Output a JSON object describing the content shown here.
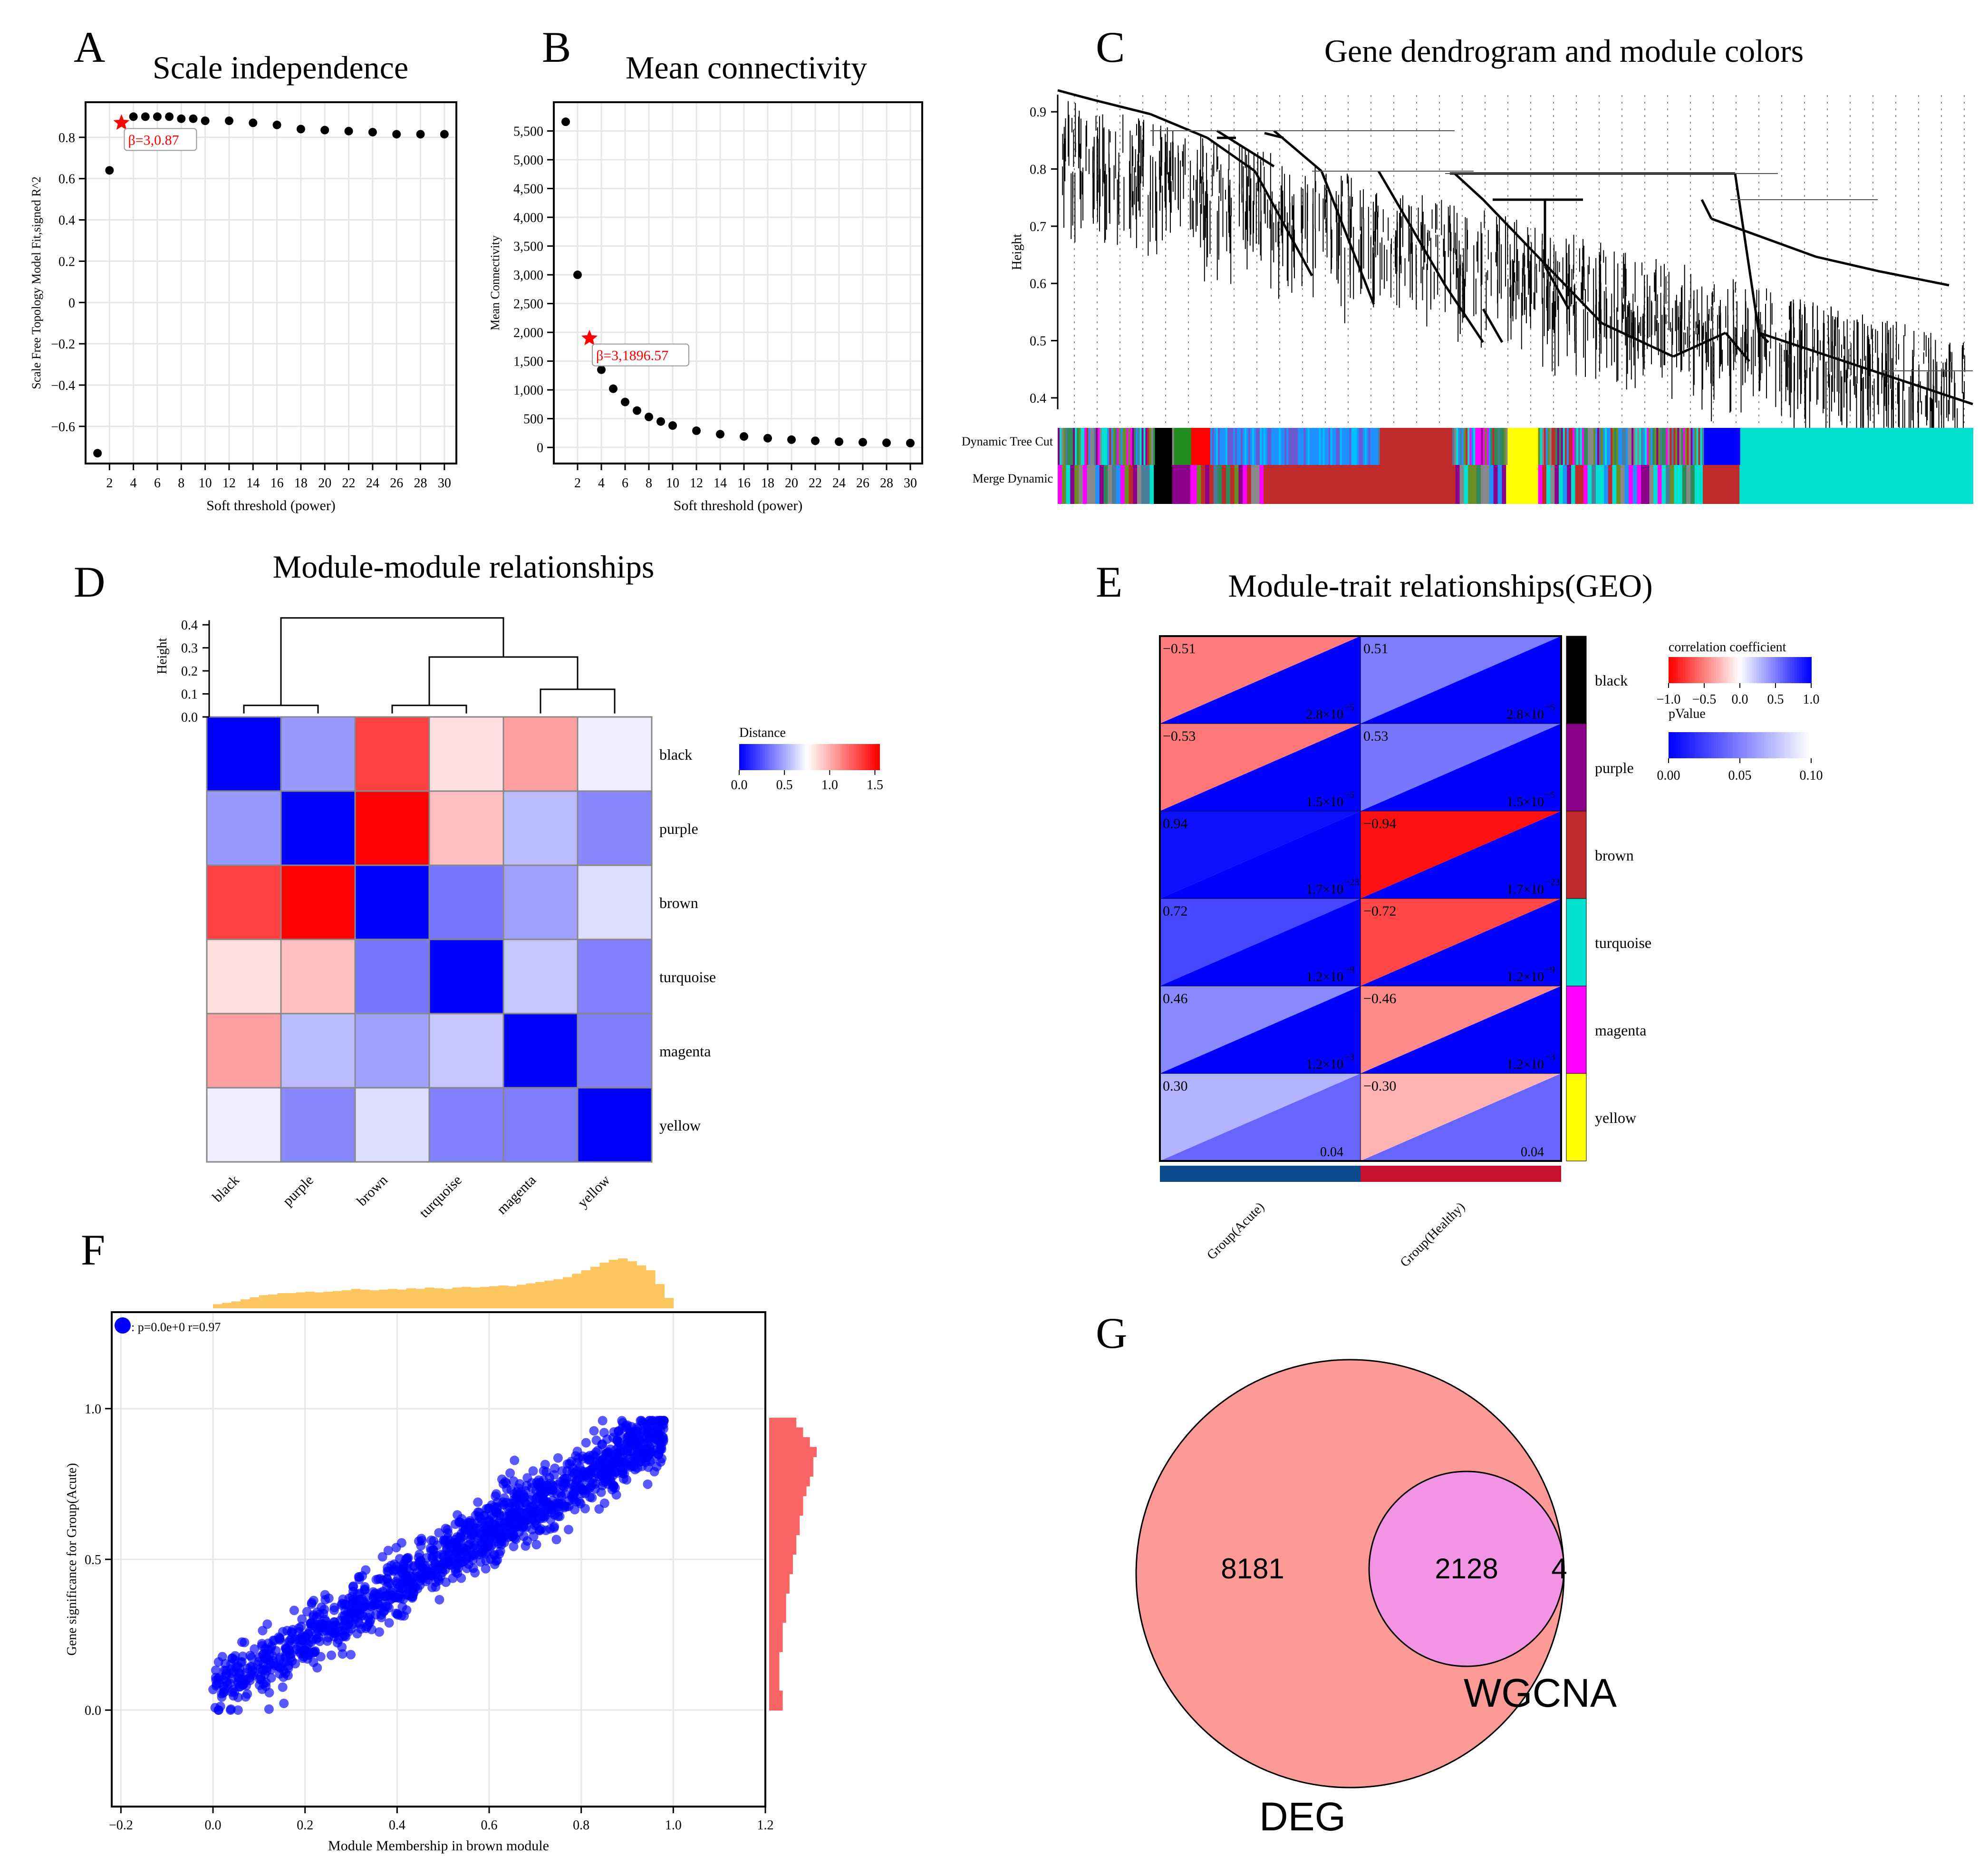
{
  "panel_letters": [
    "A",
    "B",
    "C",
    "D",
    "E",
    "F",
    "G"
  ],
  "colors": {
    "black": "#000000",
    "purple": "#8b008b",
    "brown": "#c12a2a",
    "turquoise": "#00e0d0",
    "magenta": "#ff00ff",
    "yellow": "#ffff00",
    "neg": "#ff0000",
    "pos": "#0000ff",
    "acute_bar": "#0b4a8c",
    "healthy_bar": "#c8102e",
    "hist_top": "#fcc760",
    "hist_right": "#fa6464",
    "deg": "#fc9a98",
    "wgcna": "#f294e4",
    "scatter": "#0000ff"
  },
  "chart_data": [
    {
      "id": "A",
      "type": "scatter",
      "title": "Scale independence",
      "xlabel": "Soft threshold (power)",
      "ylabel": "Scale Free Topology Model Fit,signed R^2",
      "xlim": [
        0,
        31
      ],
      "ylim": [
        -0.78,
        0.97
      ],
      "xticks": [
        2,
        4,
        6,
        8,
        10,
        12,
        14,
        16,
        18,
        20,
        22,
        24,
        26,
        28,
        30
      ],
      "yticks": [
        -0.6,
        -0.4,
        -0.2,
        0,
        0.2,
        0.4,
        0.6,
        0.8
      ],
      "ytick_labels": [
        "−0.6",
        "−0.4",
        "−0.2",
        "0",
        "0.2",
        "0.4",
        "0.6",
        "0.8"
      ],
      "x": [
        1,
        2,
        4,
        5,
        6,
        7,
        8,
        9,
        10,
        12,
        14,
        16,
        18,
        20,
        22,
        24,
        26,
        28,
        30
      ],
      "y": [
        -0.73,
        0.64,
        0.9,
        0.9,
        0.9,
        0.9,
        0.89,
        0.89,
        0.88,
        0.88,
        0.87,
        0.86,
        0.84,
        0.835,
        0.83,
        0.825,
        0.815,
        0.815,
        0.815
      ],
      "highlight": {
        "x": 3,
        "y": 0.87,
        "label": "β=3,0.87"
      }
    },
    {
      "id": "B",
      "type": "scatter",
      "title": "Mean connectivity",
      "xlabel": "Soft threshold (power)",
      "ylabel": "Mean Connectivity",
      "xlim": [
        0,
        31
      ],
      "ylim": [
        -280,
        6000
      ],
      "xticks": [
        2,
        4,
        6,
        8,
        10,
        12,
        14,
        16,
        18,
        20,
        22,
        24,
        26,
        28,
        30
      ],
      "yticks": [
        0,
        500,
        1000,
        1500,
        2000,
        2500,
        3000,
        3500,
        4000,
        4500,
        5000,
        5500
      ],
      "ytick_labels": [
        "0",
        "500",
        "1,000",
        "1,500",
        "2,000",
        "2,500",
        "3,000",
        "3,500",
        "4,000",
        "4,500",
        "5,000",
        "5,500"
      ],
      "x": [
        1,
        2,
        4,
        5,
        6,
        7,
        8,
        9,
        10,
        12,
        14,
        16,
        18,
        20,
        22,
        24,
        26,
        28,
        30
      ],
      "y": [
        5660,
        3000,
        1350,
        1020,
        790,
        640,
        530,
        450,
        380,
        290,
        230,
        190,
        160,
        135,
        115,
        100,
        90,
        80,
        75
      ],
      "highlight": {
        "x": 3,
        "y": 1896.57,
        "label": "β=3,1896.57"
      }
    },
    {
      "id": "C",
      "type": "dendrogram",
      "title": "Gene dendrogram and module colors",
      "ylabel": "Height",
      "ylim": [
        0.36,
        0.95
      ],
      "yticks": [
        0.4,
        0.5,
        0.6,
        0.7,
        0.8,
        0.9
      ],
      "row_labels": [
        "Dynamic Tree Cut",
        "Merge Dynamic"
      ],
      "merge_blocks": [
        {
          "module": "mixed",
          "from": 0,
          "to": 0.105
        },
        {
          "module": "black",
          "from": 0.105,
          "to": 0.125
        },
        {
          "module": "purple",
          "from": 0.125,
          "to": 0.145
        },
        {
          "module": "magenta",
          "from": 0.145,
          "to": 0.152
        },
        {
          "module": "mixed",
          "from": 0.152,
          "to": 0.225
        },
        {
          "module": "brown",
          "from": 0.225,
          "to": 0.43
        },
        {
          "module": "mixed",
          "from": 0.43,
          "to": 0.49
        },
        {
          "module": "yellow",
          "from": 0.49,
          "to": 0.525
        },
        {
          "module": "mixed",
          "from": 0.525,
          "to": 0.705
        },
        {
          "module": "brown",
          "from": 0.705,
          "to": 0.745
        },
        {
          "module": "turquoise",
          "from": 0.745,
          "to": 1.0
        }
      ]
    },
    {
      "id": "D",
      "type": "heatmap",
      "title": "Module-module relationships",
      "ylabel": "Height",
      "legend_title": "Distance",
      "dendro_ticks": [
        0.0,
        0.1,
        0.2,
        0.3,
        0.4
      ],
      "dendro_tick_labels": [
        "0.0",
        "0.1",
        "0.2",
        "0.3",
        "0.4"
      ],
      "legend_ticks": [
        "0.0",
        "0.5",
        "1.0",
        "1.5"
      ],
      "modules": [
        "black",
        "purple",
        "brown",
        "turquoise",
        "magenta",
        "yellow"
      ],
      "matrix": [
        [
          0.0,
          0.45,
          1.35,
          0.85,
          1.05,
          0.7
        ],
        [
          0.45,
          0.0,
          1.55,
          0.95,
          0.55,
          0.4
        ],
        [
          1.35,
          1.55,
          0.0,
          0.35,
          0.47,
          0.65
        ],
        [
          0.85,
          0.95,
          0.35,
          0.0,
          0.58,
          0.38
        ],
        [
          1.05,
          0.55,
          0.47,
          0.58,
          0.0,
          0.37
        ],
        [
          0.7,
          0.4,
          0.65,
          0.38,
          0.37,
          0.0
        ]
      ]
    },
    {
      "id": "E",
      "type": "heatmap",
      "title": "Module-trait relationships(GEO)",
      "traits": [
        "Group(Acute)",
        "Group(Healthy)"
      ],
      "modules": [
        "black",
        "purple",
        "brown",
        "turquoise",
        "magenta",
        "yellow"
      ],
      "cor": [
        [
          -0.51,
          0.51
        ],
        [
          -0.53,
          0.53
        ],
        [
          0.94,
          -0.94
        ],
        [
          0.72,
          -0.72
        ],
        [
          0.46,
          -0.46
        ],
        [
          0.3,
          -0.3
        ]
      ],
      "cor_labels": [
        [
          "−0.51",
          "0.51"
        ],
        [
          "−0.53",
          "0.53"
        ],
        [
          "0.94",
          "−0.94"
        ],
        [
          "0.72",
          "−0.72"
        ],
        [
          "0.46",
          "−0.46"
        ],
        [
          "0.30",
          "−0.30"
        ]
      ],
      "pval": [
        0.0,
        0.0,
        0.0,
        0.0,
        0.0,
        0.04
      ],
      "p_mant": [
        "2.8×10",
        "1.5×10",
        "1.7×10",
        "1.2×10",
        "1.2×10",
        "0.04"
      ],
      "p_exp": [
        "−5",
        "−5",
        "−23",
        "−9",
        "−3",
        ""
      ],
      "legend_cor_title": "correlation coefficient",
      "legend_cor_ticks": [
        "−1.0",
        "−0.5",
        "0.0",
        "0.5",
        "1.0"
      ],
      "legend_p_title": "pValue",
      "legend_p_ticks": [
        "0.00",
        "0.05",
        "0.10"
      ]
    },
    {
      "id": "F",
      "type": "scatter",
      "xlabel": "Module Membership in brown module",
      "ylabel": "Gene significance for Group(Acute)",
      "xlim": [
        -0.22,
        1.2
      ],
      "ylim": [
        -0.32,
        1.32
      ],
      "xticks": [
        -0.2,
        0,
        0.2,
        0.4,
        0.6,
        0.8,
        1.0,
        1.2
      ],
      "xtick_labels": [
        "−0.2",
        "0.0",
        "0.2",
        "0.4",
        "0.6",
        "0.8",
        "1.0",
        "1.2"
      ],
      "yticks": [
        0,
        0.5,
        1.0
      ],
      "ytick_labels": [
        "0.0",
        "0.5",
        "1.0"
      ],
      "legend": ": p=0.0e+0 r=0.97",
      "r": 0.97,
      "trend": {
        "x0": 0.0,
        "y0": 0.06,
        "x1": 0.97,
        "y1": 0.92
      },
      "top_hist": [
        6,
        8,
        10,
        13,
        16,
        19,
        20,
        22,
        22,
        23,
        24,
        23,
        24,
        25,
        26,
        28,
        27,
        26,
        27,
        28,
        27,
        29,
        28,
        30,
        29,
        28,
        30,
        31,
        30,
        31,
        32,
        33,
        32,
        34,
        36,
        38,
        40,
        42,
        45,
        50,
        55,
        60,
        66,
        70,
        72,
        68,
        62,
        55,
        35,
        15
      ],
      "right_hist": [
        8,
        10,
        12,
        14,
        13,
        13,
        12,
        11,
        10,
        10,
        9,
        9,
        8,
        8,
        7,
        7,
        6,
        6,
        5,
        5,
        5,
        4,
        4,
        4,
        3,
        3,
        3,
        3,
        4,
        4
      ]
    },
    {
      "id": "G",
      "type": "venn",
      "sets": [
        {
          "name": "DEG",
          "only": 8181
        },
        {
          "name": "WGCNA",
          "only": 4
        }
      ],
      "intersection": 2128
    }
  ]
}
